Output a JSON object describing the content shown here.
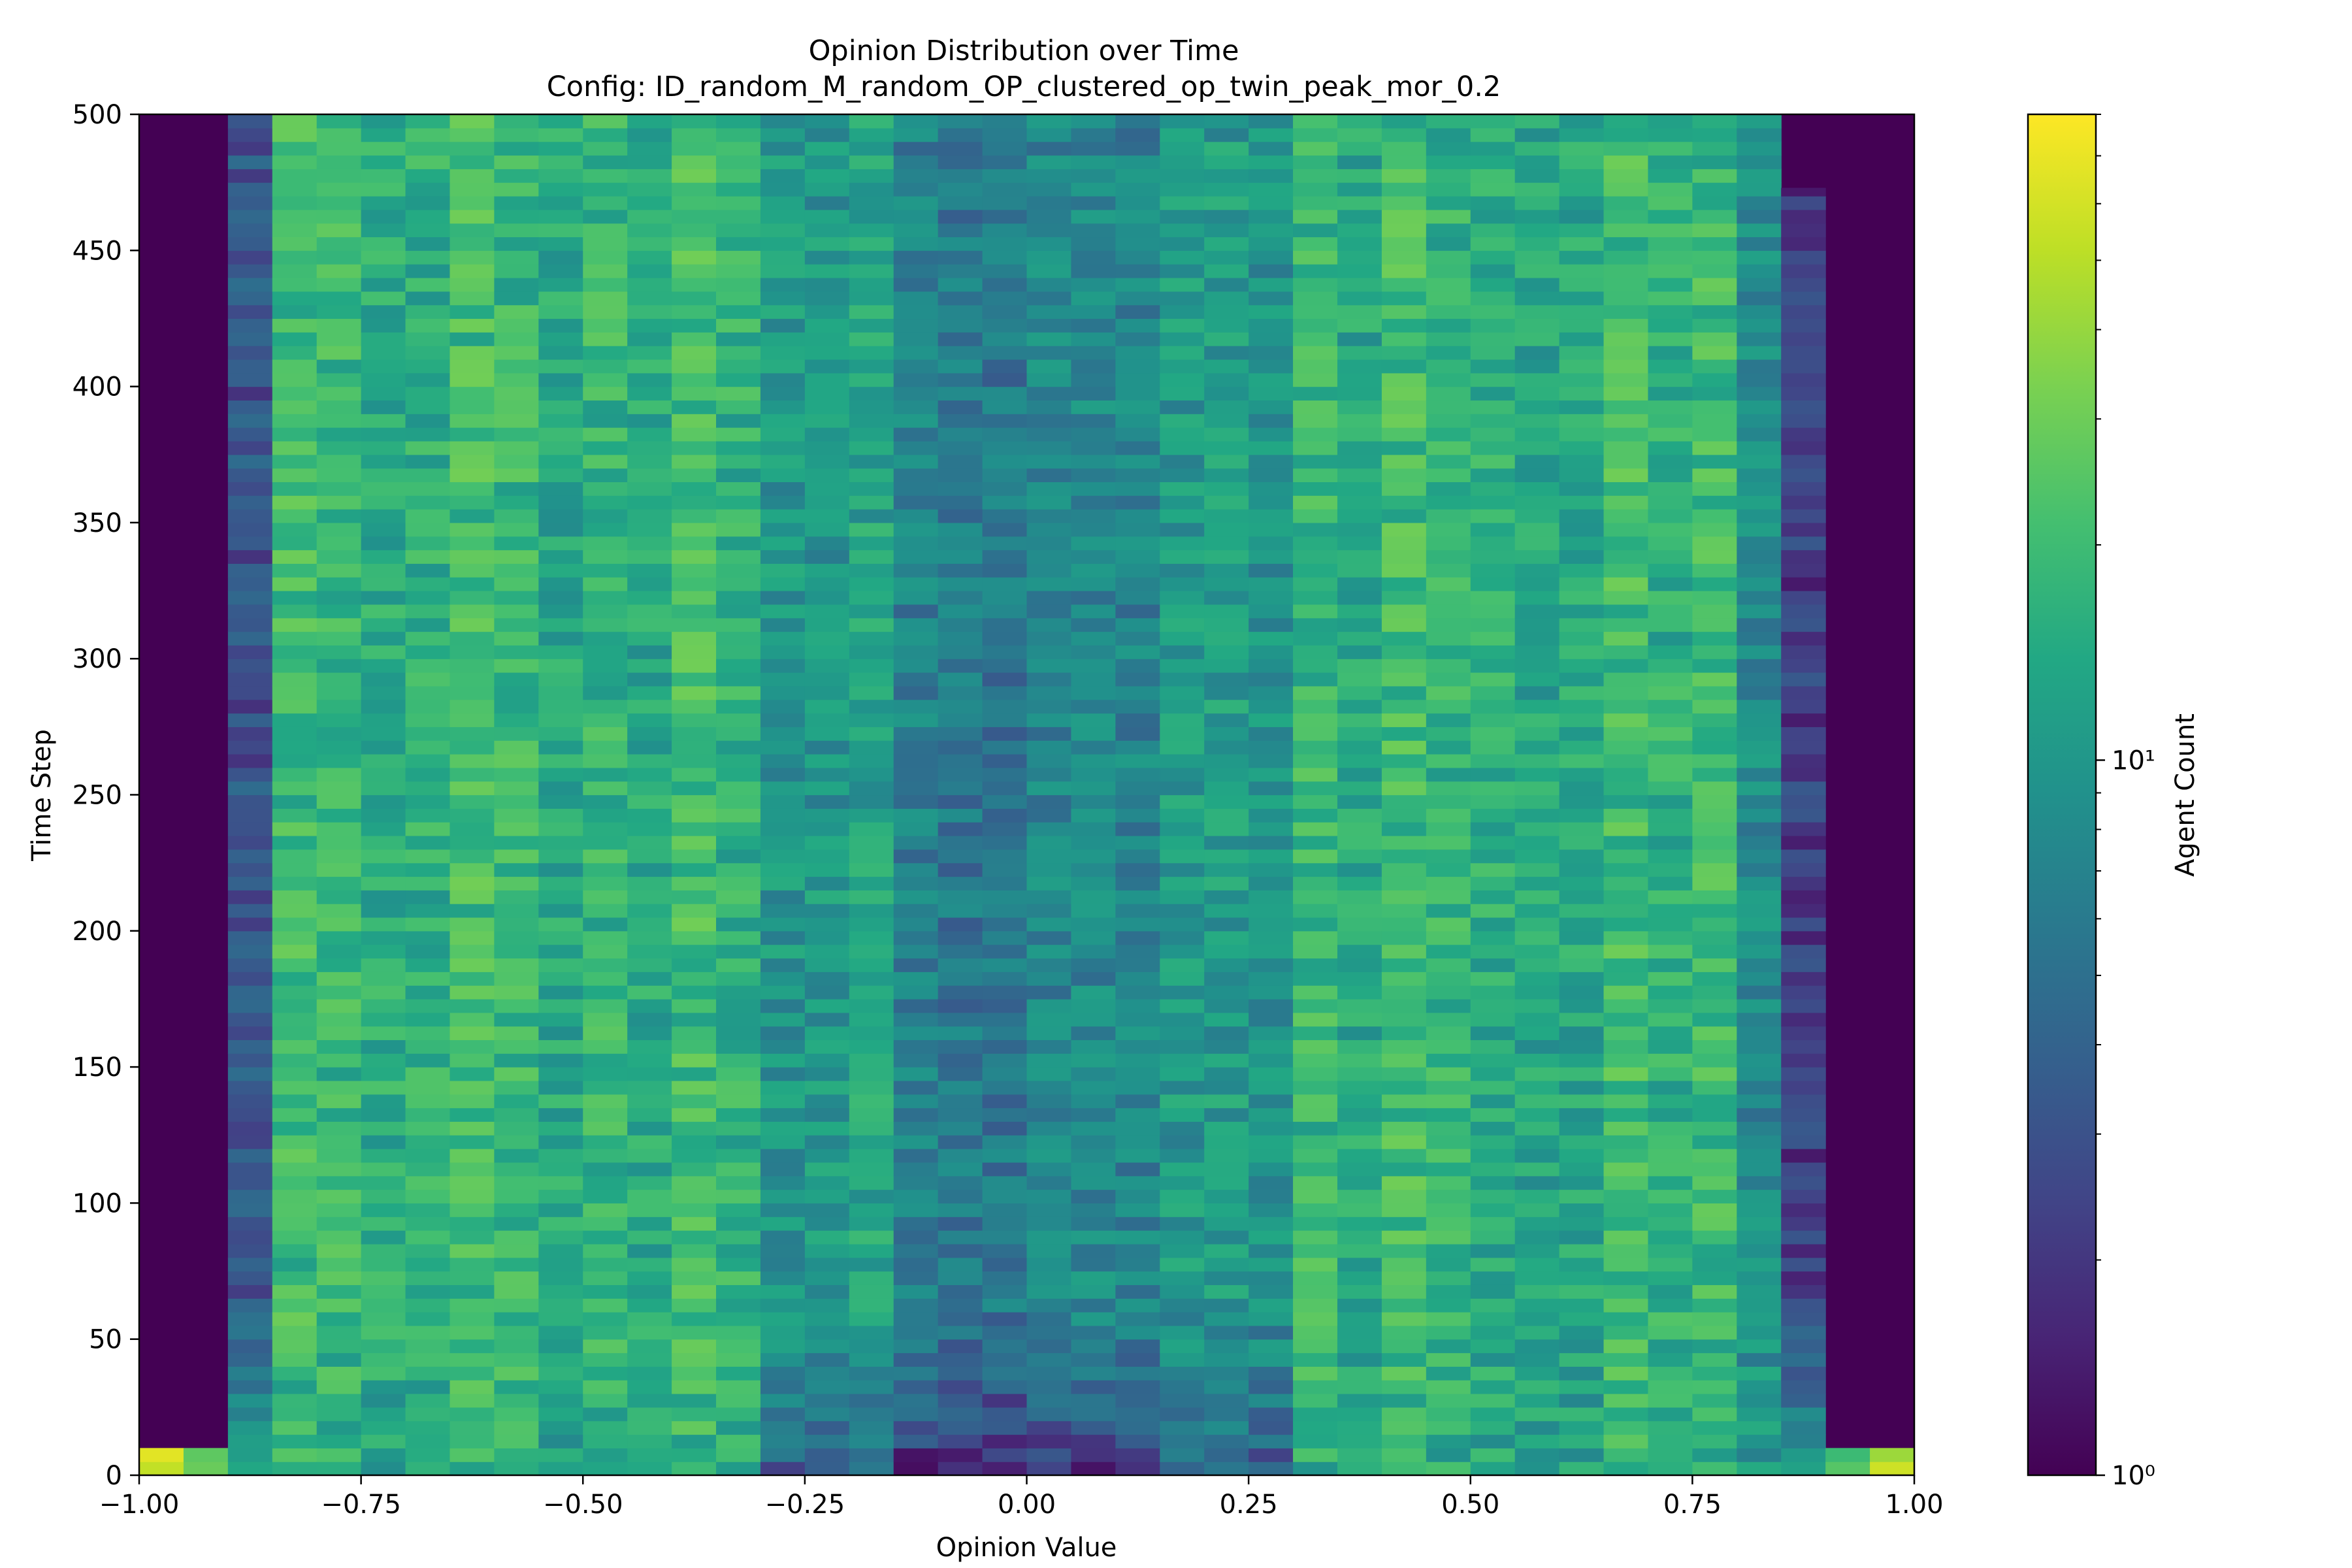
{
  "chart_data": {
    "type": "heatmap",
    "title": "Opinion Distribution over Time",
    "subtitle": "Config: ID_random_M_random_OP_clustered_op_twin_peak_mor_0.2",
    "xlabel": "Opinion Value",
    "ylabel": "Time Step",
    "xlim": [
      -1.0,
      1.0
    ],
    "ylim": [
      0,
      500
    ],
    "x_ticks": [
      -1.0,
      -0.75,
      -0.5,
      -0.25,
      0.0,
      0.25,
      0.5,
      0.75,
      1.0
    ],
    "x_tick_labels": [
      "−1.00",
      "−0.75",
      "−0.50",
      "−0.25",
      "0.00",
      "0.25",
      "0.50",
      "0.75",
      "1.00"
    ],
    "y_ticks": [
      0,
      50,
      100,
      150,
      200,
      250,
      300,
      350,
      400,
      450,
      500
    ],
    "y_tick_labels": [
      "0",
      "50",
      "100",
      "150",
      "200",
      "250",
      "300",
      "350",
      "400",
      "450",
      "500"
    ],
    "n_bins": 40,
    "bin_width": 0.05,
    "colorbar": {
      "label": "Agent Count",
      "scale": "log",
      "range": [
        1,
        80
      ],
      "major_ticks": [
        1,
        10
      ],
      "major_tick_labels": [
        "10⁰",
        "10¹"
      ],
      "colormap": "viridis"
    },
    "bin_profiles": [
      {
        "range": [
          -1.0,
          -0.95
        ],
        "count_at_start": 60,
        "count_later": 1,
        "active_until_step": 33
      },
      {
        "range": [
          -0.95,
          -0.9
        ],
        "count_at_start": 20,
        "count_later": 1,
        "active_until_step": 43
      },
      {
        "range": [
          -0.9,
          -0.85
        ],
        "count_at_start": 12,
        "count_later": 4,
        "active_until_step": 500
      },
      {
        "range": [
          -0.85,
          -0.3
        ],
        "count_at_start": 16,
        "count_later": 18,
        "active_until_step": 500
      },
      {
        "range": [
          -0.3,
          -0.15
        ],
        "count_at_start": 4,
        "count_later": 11,
        "active_until_step": 500
      },
      {
        "range": [
          -0.15,
          0.15
        ],
        "count_at_start": 2,
        "count_later": 8,
        "active_until_step": 500
      },
      {
        "range": [
          0.15,
          0.3
        ],
        "count_at_start": 4,
        "count_later": 11,
        "active_until_step": 500
      },
      {
        "range": [
          0.3,
          0.8
        ],
        "count_at_start": 16,
        "count_later": 18,
        "active_until_step": 500
      },
      {
        "range": [
          0.8,
          0.85
        ],
        "count_at_start": 14,
        "count_later": 10,
        "active_until_step": 500
      },
      {
        "range": [
          0.85,
          0.9
        ],
        "count_at_start": 12,
        "count_later": 3,
        "active_until_step": 473
      },
      {
        "range": [
          0.9,
          0.95
        ],
        "count_at_start": 25,
        "count_later": 1,
        "active_until_step": 45
      },
      {
        "range": [
          0.95,
          1.0
        ],
        "count_at_start": 60,
        "count_later": 1,
        "active_until_step": 22
      }
    ]
  }
}
